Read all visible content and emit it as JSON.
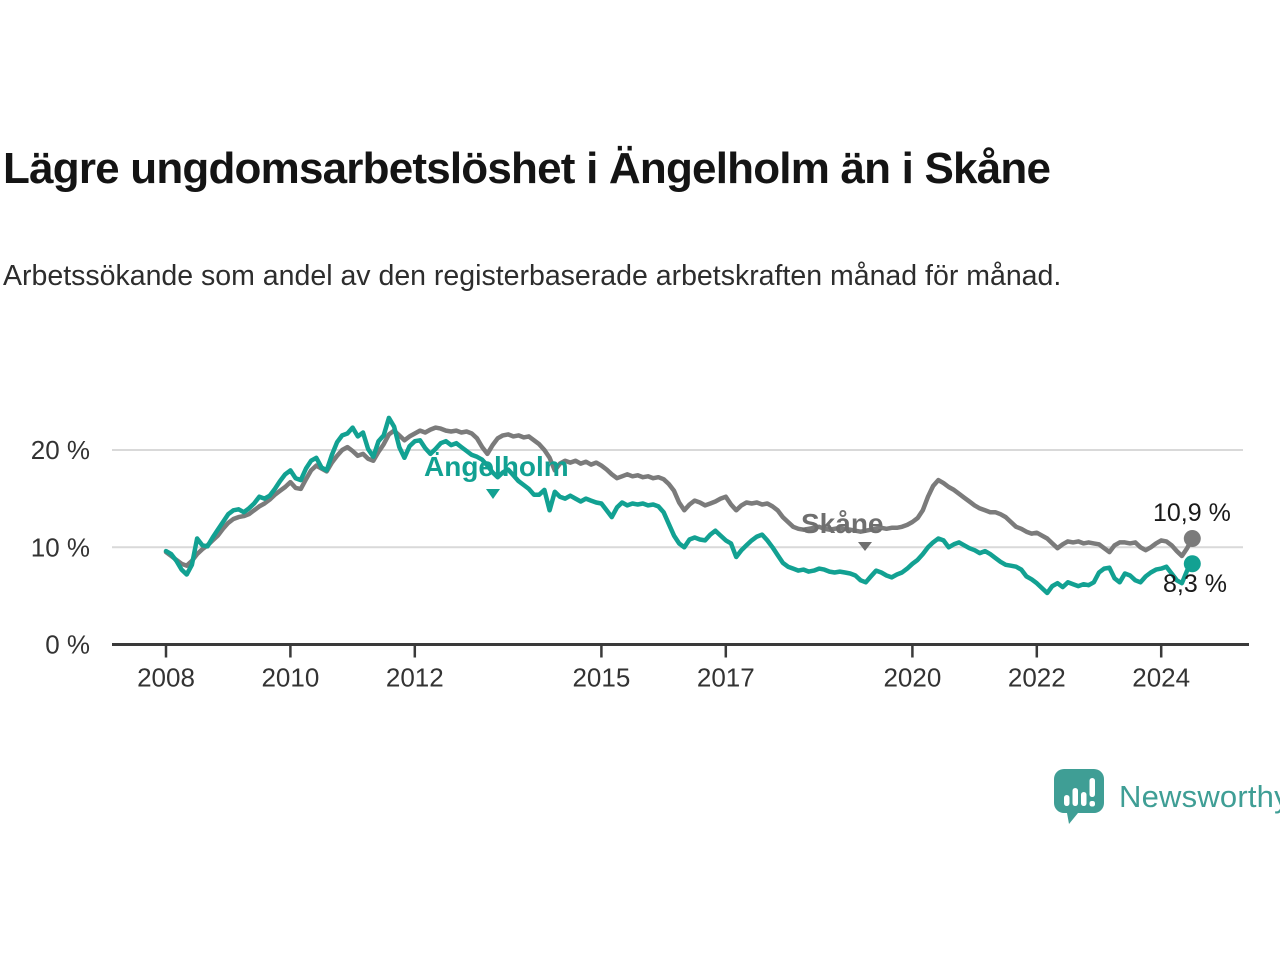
{
  "header": {
    "title": "Lägre ungdomsarbetslöshet i Ängelholm än i Skåne",
    "subtitle": "Arbetssökande som andel av den registerbaserade arbetskraften månad för månad."
  },
  "chart_data": {
    "type": "line",
    "unit": "%",
    "frequency": "monthly",
    "x_start_year": 2008,
    "x_ticks": [
      2008,
      2010,
      2012,
      2015,
      2017,
      2020,
      2022,
      2024
    ],
    "y_ticks": [
      {
        "value": 0,
        "label": "0 %"
      },
      {
        "value": 10,
        "label": "10 %"
      },
      {
        "value": 20,
        "label": "20 %"
      }
    ],
    "ylim": [
      0,
      24
    ],
    "grid": "horizontal",
    "legend_position": "inline-labels",
    "series": [
      {
        "name": "Skåne",
        "color": "#7b7b7b",
        "latest_value_label": "10,9 %",
        "values": [
          9.5,
          9.1,
          8.7,
          8.3,
          8.1,
          8.6,
          9.3,
          9.8,
          10.2,
          10.7,
          11.2,
          11.9,
          12.5,
          12.9,
          13.1,
          13.2,
          13.4,
          13.8,
          14.2,
          14.5,
          14.9,
          15.4,
          15.8,
          16.2,
          16.7,
          16.1,
          16.0,
          17.0,
          17.9,
          18.4,
          18.1,
          17.8,
          18.7,
          19.4,
          20.0,
          20.3,
          19.9,
          19.4,
          19.6,
          19.1,
          18.9,
          19.8,
          20.6,
          21.6,
          22.0,
          21.5,
          21.0,
          21.4,
          21.7,
          22.0,
          21.8,
          22.1,
          22.3,
          22.2,
          22.0,
          21.9,
          22.0,
          21.8,
          21.9,
          21.7,
          21.2,
          20.3,
          19.6,
          20.5,
          21.2,
          21.5,
          21.6,
          21.4,
          21.5,
          21.3,
          21.4,
          21.0,
          20.6,
          20.0,
          19.2,
          17.9,
          18.6,
          18.9,
          18.7,
          18.9,
          18.6,
          18.8,
          18.5,
          18.7,
          18.4,
          18.0,
          17.5,
          17.1,
          17.3,
          17.5,
          17.3,
          17.4,
          17.2,
          17.3,
          17.1,
          17.2,
          17.0,
          16.5,
          15.8,
          14.6,
          13.8,
          14.4,
          14.8,
          14.6,
          14.3,
          14.5,
          14.7,
          15.0,
          15.2,
          14.4,
          13.8,
          14.3,
          14.6,
          14.5,
          14.6,
          14.4,
          14.5,
          14.2,
          13.8,
          13.1,
          12.6,
          12.1,
          11.9,
          11.8,
          11.9,
          12.0,
          12.1,
          11.9,
          11.8,
          11.9,
          12.0,
          11.9,
          11.8,
          11.7,
          11.6,
          11.7,
          11.8,
          11.9,
          12.0,
          11.9,
          12.0,
          12.0,
          12.1,
          12.3,
          12.6,
          13.0,
          13.8,
          15.2,
          16.3,
          16.9,
          16.6,
          16.2,
          15.9,
          15.5,
          15.1,
          14.7,
          14.3,
          14.0,
          13.8,
          13.6,
          13.6,
          13.4,
          13.1,
          12.6,
          12.1,
          11.9,
          11.6,
          11.4,
          11.5,
          11.2,
          10.9,
          10.4,
          9.9,
          10.3,
          10.6,
          10.5,
          10.6,
          10.4,
          10.5,
          10.4,
          10.3,
          9.9,
          9.5,
          10.2,
          10.5,
          10.5,
          10.4,
          10.5,
          10.0,
          9.7,
          10.0,
          10.4,
          10.7,
          10.6,
          10.2,
          9.6,
          9.1,
          9.9,
          10.9
        ]
      },
      {
        "name": "Ängelholm",
        "color": "#12a192",
        "latest_value_label": "8,3 %",
        "values": [
          9.6,
          9.3,
          8.6,
          7.7,
          7.2,
          8.2,
          10.9,
          10.2,
          10.1,
          11.0,
          11.8,
          12.6,
          13.4,
          13.8,
          13.9,
          13.6,
          14.0,
          14.5,
          15.2,
          15.0,
          15.3,
          16.0,
          16.8,
          17.5,
          17.9,
          17.1,
          16.9,
          18.1,
          18.9,
          19.2,
          18.2,
          17.9,
          19.5,
          20.8,
          21.5,
          21.7,
          22.3,
          21.4,
          21.8,
          20.1,
          19.3,
          20.9,
          21.5,
          23.3,
          22.4,
          20.3,
          19.2,
          20.4,
          20.9,
          21.0,
          20.2,
          19.6,
          20.1,
          20.7,
          20.9,
          20.5,
          20.7,
          20.3,
          19.9,
          19.5,
          19.3,
          19.0,
          18.4,
          17.7,
          17.2,
          17.7,
          18.0,
          17.4,
          16.8,
          16.4,
          16.0,
          15.4,
          15.4,
          15.9,
          13.8,
          15.7,
          15.2,
          15.0,
          15.3,
          15.0,
          14.7,
          15.0,
          14.8,
          14.6,
          14.5,
          13.8,
          13.1,
          14.1,
          14.6,
          14.3,
          14.5,
          14.4,
          14.5,
          14.3,
          14.4,
          14.2,
          13.6,
          12.4,
          11.2,
          10.4,
          10.0,
          10.8,
          11.0,
          10.8,
          10.7,
          11.3,
          11.7,
          11.2,
          10.7,
          10.4,
          9.0,
          9.7,
          10.2,
          10.7,
          11.1,
          11.3,
          10.7,
          10.0,
          9.2,
          8.4,
          8.0,
          7.8,
          7.6,
          7.7,
          7.5,
          7.6,
          7.8,
          7.7,
          7.5,
          7.4,
          7.5,
          7.4,
          7.3,
          7.1,
          6.6,
          6.4,
          7.0,
          7.6,
          7.4,
          7.1,
          6.9,
          7.2,
          7.4,
          7.8,
          8.3,
          8.7,
          9.3,
          10.0,
          10.5,
          10.9,
          10.7,
          10.0,
          10.3,
          10.5,
          10.2,
          9.9,
          9.7,
          9.4,
          9.6,
          9.3,
          8.9,
          8.5,
          8.2,
          8.1,
          8.0,
          7.7,
          7.0,
          6.7,
          6.3,
          5.8,
          5.3,
          6.0,
          6.3,
          5.9,
          6.4,
          6.2,
          6.0,
          6.2,
          6.1,
          6.4,
          7.4,
          7.8,
          7.9,
          6.8,
          6.4,
          7.3,
          7.1,
          6.6,
          6.4,
          7.0,
          7.4,
          7.7,
          7.8,
          8.0,
          7.3,
          6.6,
          6.3,
          7.6,
          8.3
        ]
      }
    ]
  },
  "annotations": {
    "skane_value_label": "10,9 %",
    "angelholm_value_label": "8,3 %"
  },
  "footer": {
    "brand": "Newsworthy"
  }
}
